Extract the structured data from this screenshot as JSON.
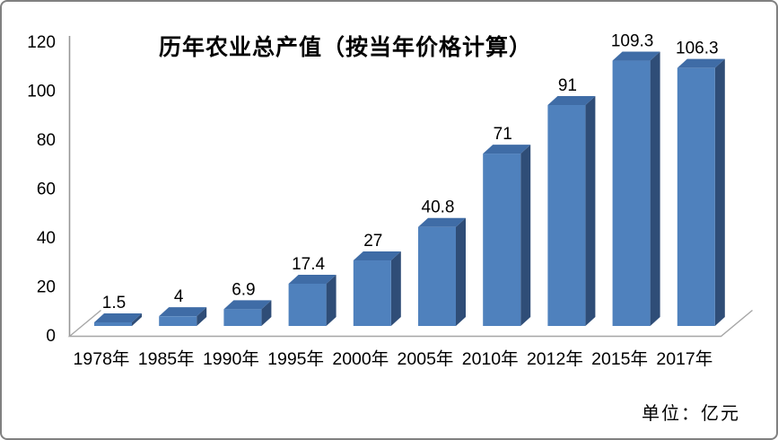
{
  "chart": {
    "title": "历年农业总产值（按当年价格计算）",
    "unit_label": "单位：亿元",
    "colors": {
      "bar_front": "#4f81bd",
      "bar_top": "#3f6ca6",
      "bar_side": "#2f4d77",
      "axis_line": "#969696",
      "floor_line": "#a6a6a6",
      "text": "#000000",
      "frame_border": "#808080"
    }
  },
  "chart_data": {
    "type": "bar",
    "style": "3d-column",
    "title": "历年农业总产值（按当年价格计算）",
    "unit": "亿元",
    "categories": [
      "1978年",
      "1985年",
      "1990年",
      "1995年",
      "2000年",
      "2005年",
      "2010年",
      "2012年",
      "2015年",
      "2017年"
    ],
    "values": [
      1.5,
      4,
      6.9,
      17.4,
      27,
      40.8,
      71,
      91,
      109.3,
      106.3
    ],
    "data_labels_visible": true,
    "xlabel": "",
    "ylabel": "",
    "ylim": [
      0,
      120
    ],
    "ytick_interval": 20,
    "yticks": [
      0,
      20,
      40,
      60,
      80,
      100,
      120
    ],
    "grid": false,
    "legend": "none"
  }
}
